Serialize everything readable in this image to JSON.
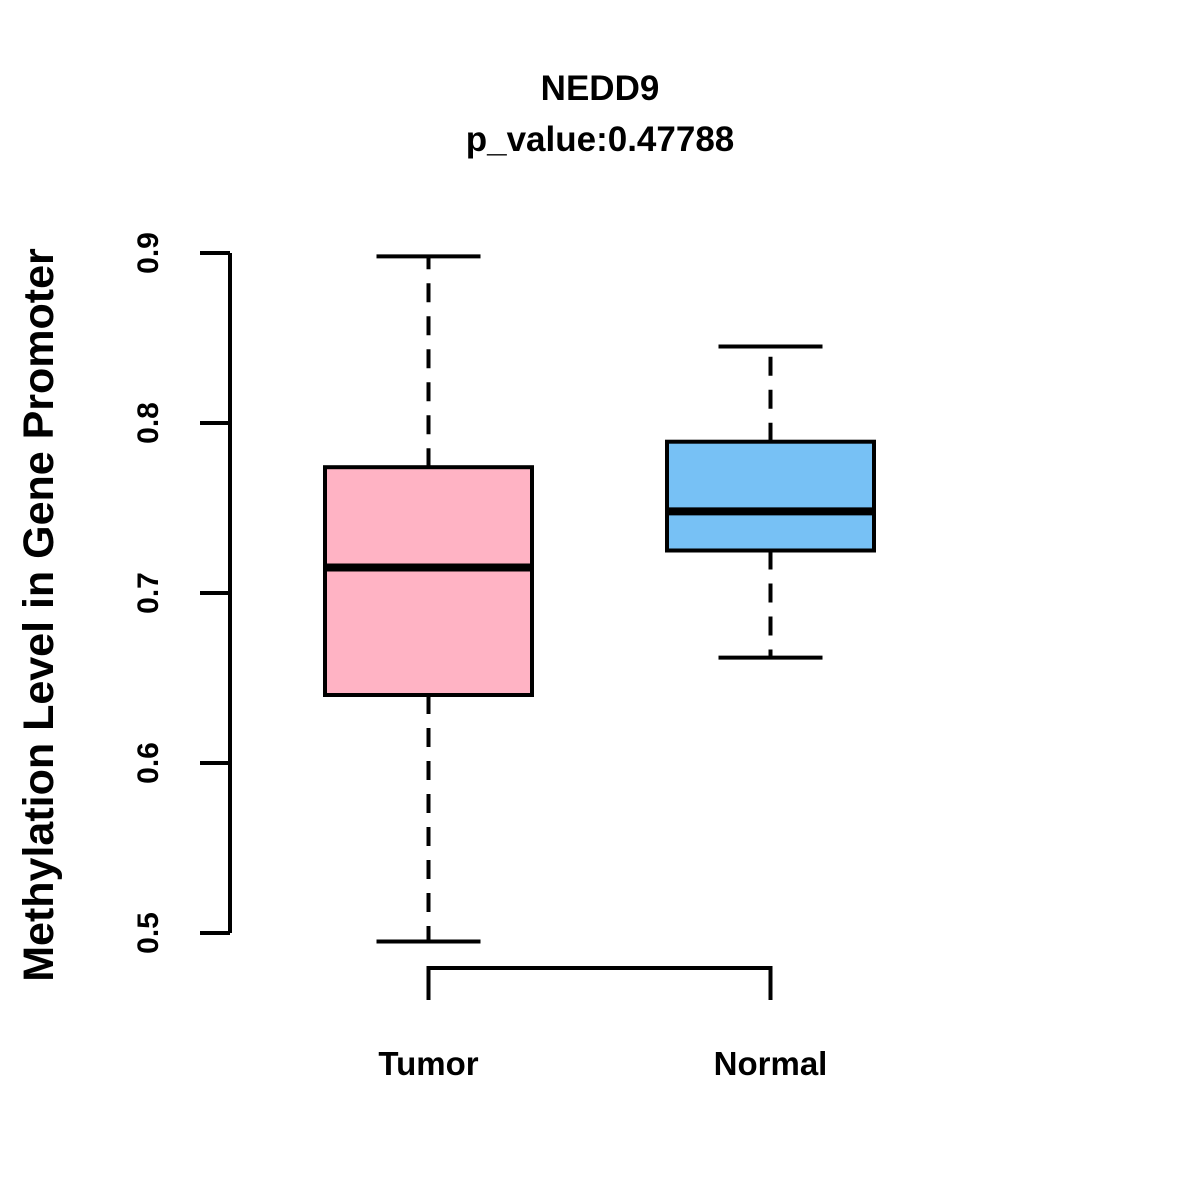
{
  "chart_data": {
    "type": "boxplot",
    "title": "NEDD9",
    "subtitle": "p_value:0.47788",
    "ylabel": "Methylation Level in Gene Promoter",
    "xlabel": "",
    "ylim": [
      0.5,
      0.9
    ],
    "yticks": [
      0.5,
      0.6,
      0.7,
      0.8,
      0.9
    ],
    "ytick_labels": [
      "0.5",
      "0.6",
      "0.7",
      "0.8",
      "0.9"
    ],
    "categories": [
      "Tumor",
      "Normal"
    ],
    "grid": false,
    "legend": "none",
    "whisker_style": "dashed",
    "line_color": "#000000",
    "background_color": "#FFFFFF",
    "series": [
      {
        "name": "Tumor",
        "fill_color": "#FFB3C4",
        "whisker_low": 0.495,
        "q1": 0.64,
        "median": 0.715,
        "q3": 0.774,
        "whisker_high": 0.898
      },
      {
        "name": "Normal",
        "fill_color": "#77C1F5",
        "whisker_low": 0.662,
        "q1": 0.725,
        "median": 0.748,
        "q3": 0.789,
        "whisker_high": 0.845
      }
    ]
  }
}
